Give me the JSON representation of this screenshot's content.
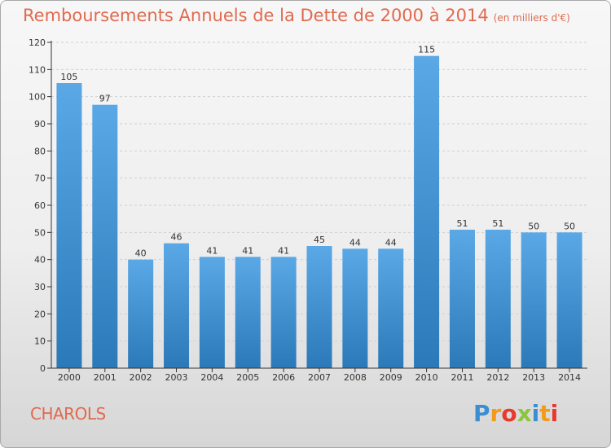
{
  "header": {
    "title": "Remboursements Annuels de la Dette de 2000 à 2014",
    "unit": "(en milliers d'€)"
  },
  "footer": {
    "place": "CHAROLS",
    "logo": [
      "P",
      "r",
      "o",
      "x",
      "i",
      "t",
      "i"
    ]
  },
  "colors": {
    "bar_top": "#5aa8e6",
    "bar_bottom": "#2b79b8",
    "title": "#e06a4f"
  },
  "chart_data": {
    "type": "bar",
    "categories": [
      "2000",
      "2001",
      "2002",
      "2003",
      "2004",
      "2005",
      "2006",
      "2007",
      "2008",
      "2009",
      "2010",
      "2011",
      "2012",
      "2013",
      "2014"
    ],
    "values": [
      105,
      97,
      40,
      46,
      41,
      41,
      41,
      45,
      44,
      44,
      115,
      51,
      51,
      50,
      50
    ],
    "title": "Remboursements Annuels de la Dette de 2000 à 2014",
    "xlabel": "",
    "ylabel": "",
    "ylim": [
      0,
      120
    ],
    "yticks": [
      0,
      10,
      20,
      30,
      40,
      50,
      60,
      70,
      80,
      90,
      100,
      110,
      120
    ],
    "grid": true,
    "data_labels": true
  }
}
